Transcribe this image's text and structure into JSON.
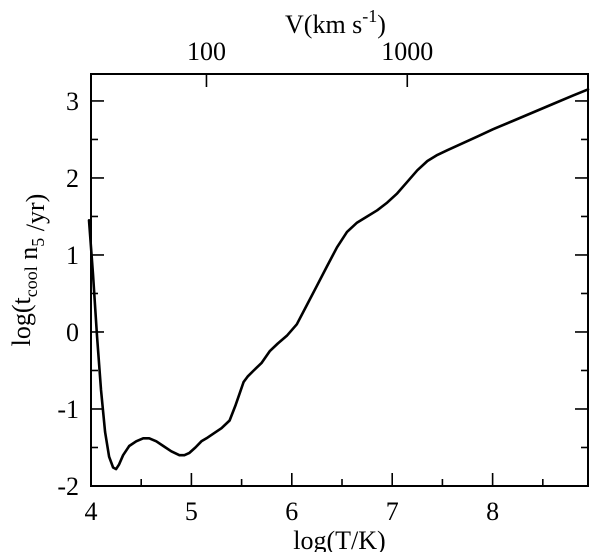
{
  "chart_data": {
    "type": "line",
    "xlabel": "log(T/K)",
    "ylabel": "log(t_cool n_5 /yr)",
    "top_xlabel": "V(km s^-1)",
    "xlim": [
      4.0,
      8.95
    ],
    "ylim": [
      -2.0,
      3.35
    ],
    "x_ticks": [
      4,
      5,
      6,
      7,
      8
    ],
    "y_ticks": [
      -2,
      -1,
      0,
      1,
      2,
      3
    ],
    "top_ticks": [
      {
        "label": "100",
        "logT": 5.15
      },
      {
        "label": "1000",
        "logT": 7.15
      }
    ],
    "grid": false,
    "legend": "none",
    "series": [
      {
        "x": [
          3.98,
          4.02,
          4.06,
          4.1,
          4.14,
          4.18,
          4.22,
          4.25,
          4.28,
          4.32,
          4.38,
          4.45,
          4.52,
          4.58,
          4.65,
          4.72,
          4.8,
          4.88,
          4.93,
          4.98,
          5.04,
          5.1,
          5.15,
          5.22,
          5.3,
          5.38,
          5.44,
          5.48,
          5.52,
          5.56,
          5.62,
          5.7,
          5.78,
          5.86,
          5.95,
          6.05,
          6.15,
          6.25,
          6.35,
          6.45,
          6.55,
          6.65,
          6.75,
          6.85,
          6.95,
          7.05,
          7.15,
          7.25,
          7.35,
          7.45,
          7.55,
          7.7,
          7.85,
          8.0,
          8.2,
          8.4,
          8.6,
          8.8,
          8.95
        ],
        "y": [
          1.45,
          0.75,
          -0.05,
          -0.75,
          -1.3,
          -1.62,
          -1.76,
          -1.78,
          -1.72,
          -1.6,
          -1.48,
          -1.42,
          -1.38,
          -1.38,
          -1.42,
          -1.48,
          -1.55,
          -1.6,
          -1.6,
          -1.57,
          -1.5,
          -1.42,
          -1.38,
          -1.32,
          -1.25,
          -1.15,
          -0.95,
          -0.8,
          -0.65,
          -0.58,
          -0.5,
          -0.4,
          -0.25,
          -0.15,
          -0.05,
          0.1,
          0.35,
          0.6,
          0.85,
          1.1,
          1.3,
          1.42,
          1.5,
          1.58,
          1.68,
          1.8,
          1.95,
          2.1,
          2.22,
          2.3,
          2.36,
          2.45,
          2.54,
          2.63,
          2.74,
          2.85,
          2.96,
          3.07,
          3.15
        ]
      }
    ]
  }
}
